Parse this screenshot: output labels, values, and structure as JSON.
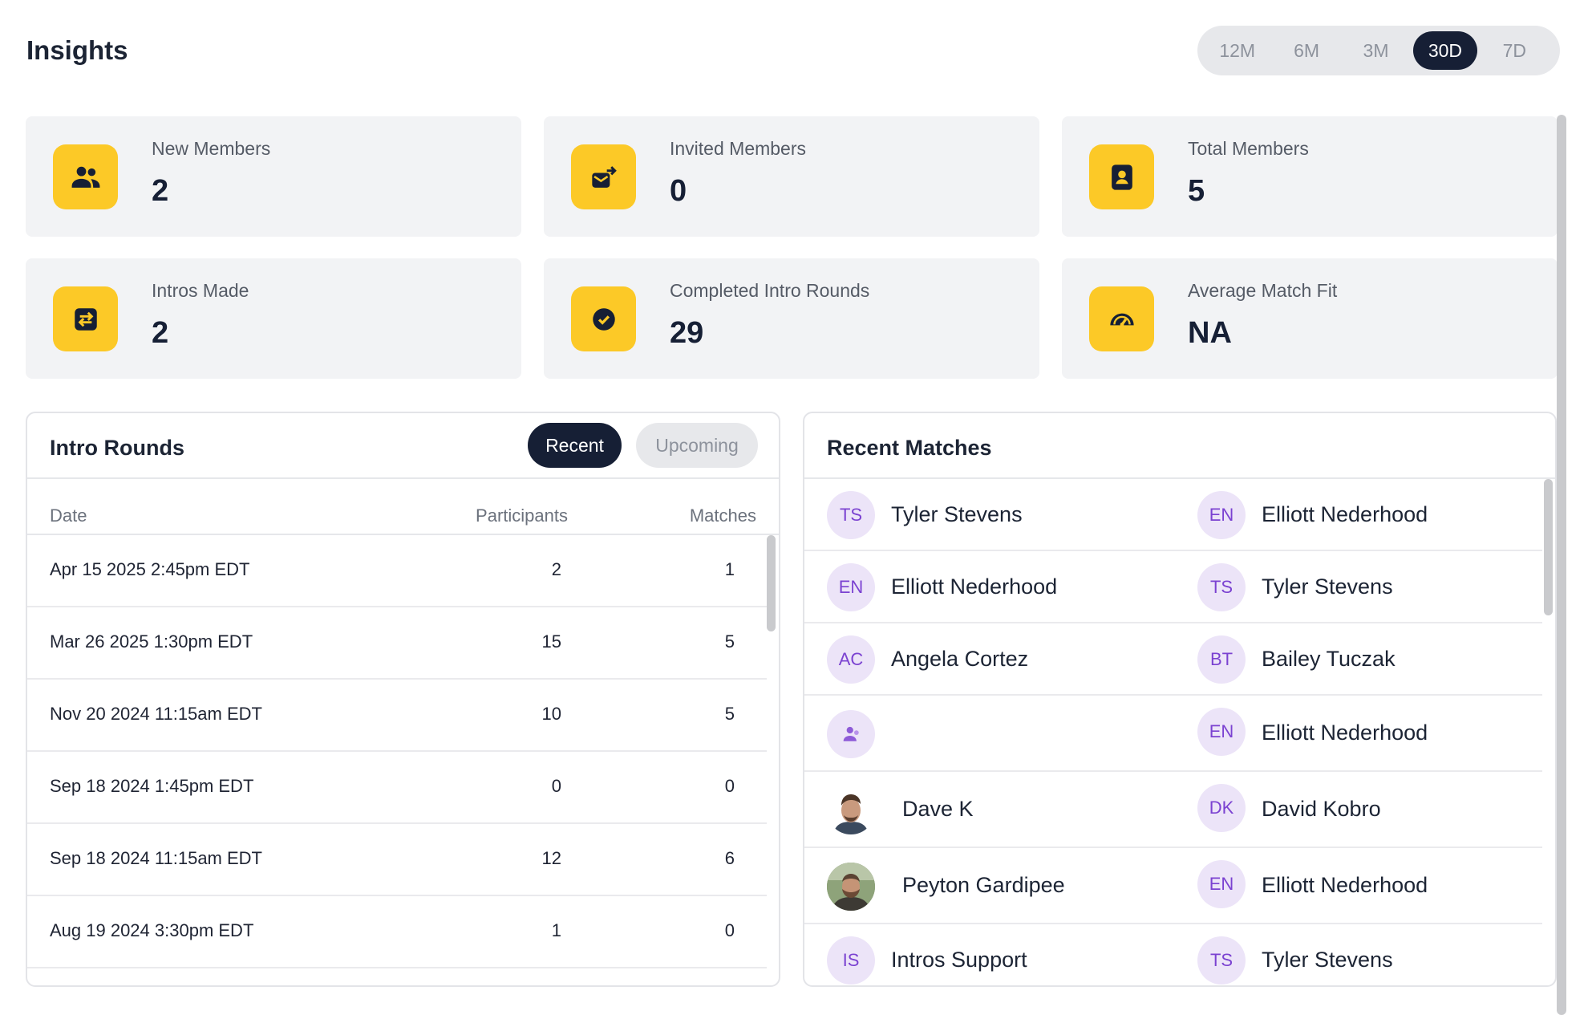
{
  "page": {
    "title": "Insights"
  },
  "periods": [
    {
      "label": "12M",
      "active": false
    },
    {
      "label": "6M",
      "active": false
    },
    {
      "label": "3M",
      "active": false
    },
    {
      "label": "30D",
      "active": true
    },
    {
      "label": "7D",
      "active": false
    }
  ],
  "stats": [
    {
      "label": "New Members",
      "value": "2",
      "icon": "people-icon"
    },
    {
      "label": "Invited Members",
      "value": "0",
      "icon": "mail-invite-icon"
    },
    {
      "label": "Total Members",
      "value": "5",
      "icon": "contact-card-icon"
    },
    {
      "label": "Intros Made",
      "value": "2",
      "icon": "swap-arrows-icon"
    },
    {
      "label": "Completed Intro Rounds",
      "value": "29",
      "icon": "check-circle-icon"
    },
    {
      "label": "Average Match Fit",
      "value": "NA",
      "icon": "gauge-icon"
    }
  ],
  "intro_rounds": {
    "title": "Intro Rounds",
    "tabs": [
      {
        "label": "Recent",
        "active": true
      },
      {
        "label": "Upcoming",
        "active": false
      }
    ],
    "columns": [
      "Date",
      "Participants",
      "Matches"
    ],
    "rows": [
      {
        "date": "Apr 15 2025 2:45pm EDT",
        "participants": "2",
        "matches": "1"
      },
      {
        "date": "Mar 26 2025 1:30pm EDT",
        "participants": "15",
        "matches": "5"
      },
      {
        "date": "Nov 20 2024 11:15am EDT",
        "participants": "10",
        "matches": "5"
      },
      {
        "date": "Sep 18 2024 1:45pm EDT",
        "participants": "0",
        "matches": "0"
      },
      {
        "date": "Sep 18 2024 11:15am EDT",
        "participants": "12",
        "matches": "6"
      },
      {
        "date": "Aug 19 2024 3:30pm EDT",
        "participants": "1",
        "matches": "0"
      }
    ]
  },
  "recent_matches": {
    "title": "Recent Matches",
    "rows": [
      {
        "a": {
          "initials": "TS",
          "name": "Tyler Stevens"
        },
        "b": {
          "initials": "EN",
          "name": "Elliott Nederhood"
        }
      },
      {
        "a": {
          "initials": "EN",
          "name": "Elliott Nederhood"
        },
        "b": {
          "initials": "TS",
          "name": "Tyler Stevens"
        }
      },
      {
        "a": {
          "initials": "AC",
          "name": "Angela Cortez"
        },
        "b": {
          "initials": "BT",
          "name": "Bailey Tuczak"
        }
      },
      {
        "a": {
          "initials": "",
          "name": "",
          "avatar_icon": "person-placeholder-icon"
        },
        "b": {
          "initials": "EN",
          "name": "Elliott Nederhood"
        }
      },
      {
        "a": {
          "initials": "",
          "name": "Dave K",
          "photo": true
        },
        "b": {
          "initials": "DK",
          "name": "David Kobro"
        }
      },
      {
        "a": {
          "initials": "",
          "name": "Peyton Gardipee",
          "photo": true
        },
        "b": {
          "initials": "EN",
          "name": "Elliott Nederhood"
        }
      },
      {
        "a": {
          "initials": "IS",
          "name": "Intros Support"
        },
        "b": {
          "initials": "TS",
          "name": "Tyler Stevens"
        }
      }
    ]
  },
  "colors": {
    "accent_dark": "#161f35",
    "icon_yellow": "#fcc927",
    "avatar_bg": "#ece4f8",
    "avatar_text": "#7b42d1"
  }
}
